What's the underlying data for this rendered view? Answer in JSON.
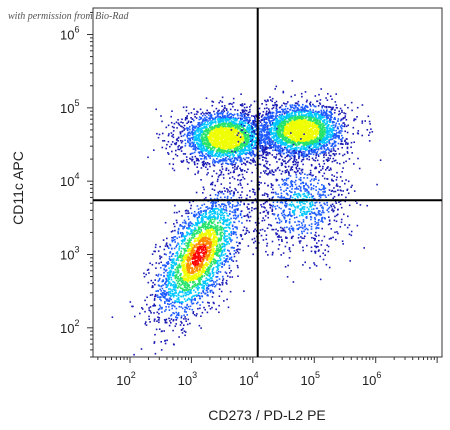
{
  "watermark": "with permission from Bio-Rad",
  "chart_data": {
    "type": "scatter",
    "subtype": "flow-cytometry-density-dot-plot",
    "xlabel": "CD273 / PD-L2 PE",
    "ylabel": "CD11c APC",
    "x_scale": "log",
    "y_scale": "log",
    "xlim": [
      25,
      12000000
    ],
    "ylim": [
      40,
      2300000
    ],
    "x_ticks": [
      {
        "value": 100,
        "base": "10",
        "exp": "2"
      },
      {
        "value": 1000,
        "base": "10",
        "exp": "3"
      },
      {
        "value": 10000,
        "base": "10",
        "exp": "4"
      },
      {
        "value": 100000,
        "base": "10",
        "exp": "5"
      },
      {
        "value": 1000000,
        "base": "10",
        "exp": "6"
      }
    ],
    "y_ticks": [
      {
        "value": 100,
        "base": "10",
        "exp": "2"
      },
      {
        "value": 1000,
        "base": "10",
        "exp": "3"
      },
      {
        "value": 10000,
        "base": "10",
        "exp": "4"
      },
      {
        "value": 100000,
        "base": "10",
        "exp": "5"
      },
      {
        "value": 1000000,
        "base": "10",
        "exp": "6"
      }
    ],
    "quadrant_gates": {
      "x": 12000,
      "y": 5500
    },
    "populations": [
      {
        "description": "double-negative / CD11c intermediate cluster",
        "x_center": 1300,
        "y_center": 1000,
        "x_spread_decades": 0.35,
        "y_spread_decades": 0.35,
        "relative_density": "high"
      },
      {
        "description": "CD11c high, PD-L2 negative cluster",
        "x_center": 3500,
        "y_center": 40000,
        "x_spread_decades": 0.35,
        "y_spread_decades": 0.18,
        "relative_density": "high"
      },
      {
        "description": "CD11c high, PD-L2 positive cluster",
        "x_center": 60000,
        "y_center": 50000,
        "x_spread_decades": 0.35,
        "y_spread_decades": 0.18,
        "relative_density": "high"
      },
      {
        "description": "PD-L2 positive, CD11c mid tail",
        "x_center": 60000,
        "y_center": 5000,
        "x_spread_decades": 0.4,
        "y_spread_decades": 0.35,
        "relative_density": "low"
      }
    ],
    "colormap": [
      "#1a1ab4",
      "#1f5cff",
      "#00c8ff",
      "#27e36b",
      "#f0ff00",
      "#ff8c00",
      "#ff0000"
    ],
    "gate_line_color": "#000000",
    "grid": false,
    "legend": "none"
  }
}
